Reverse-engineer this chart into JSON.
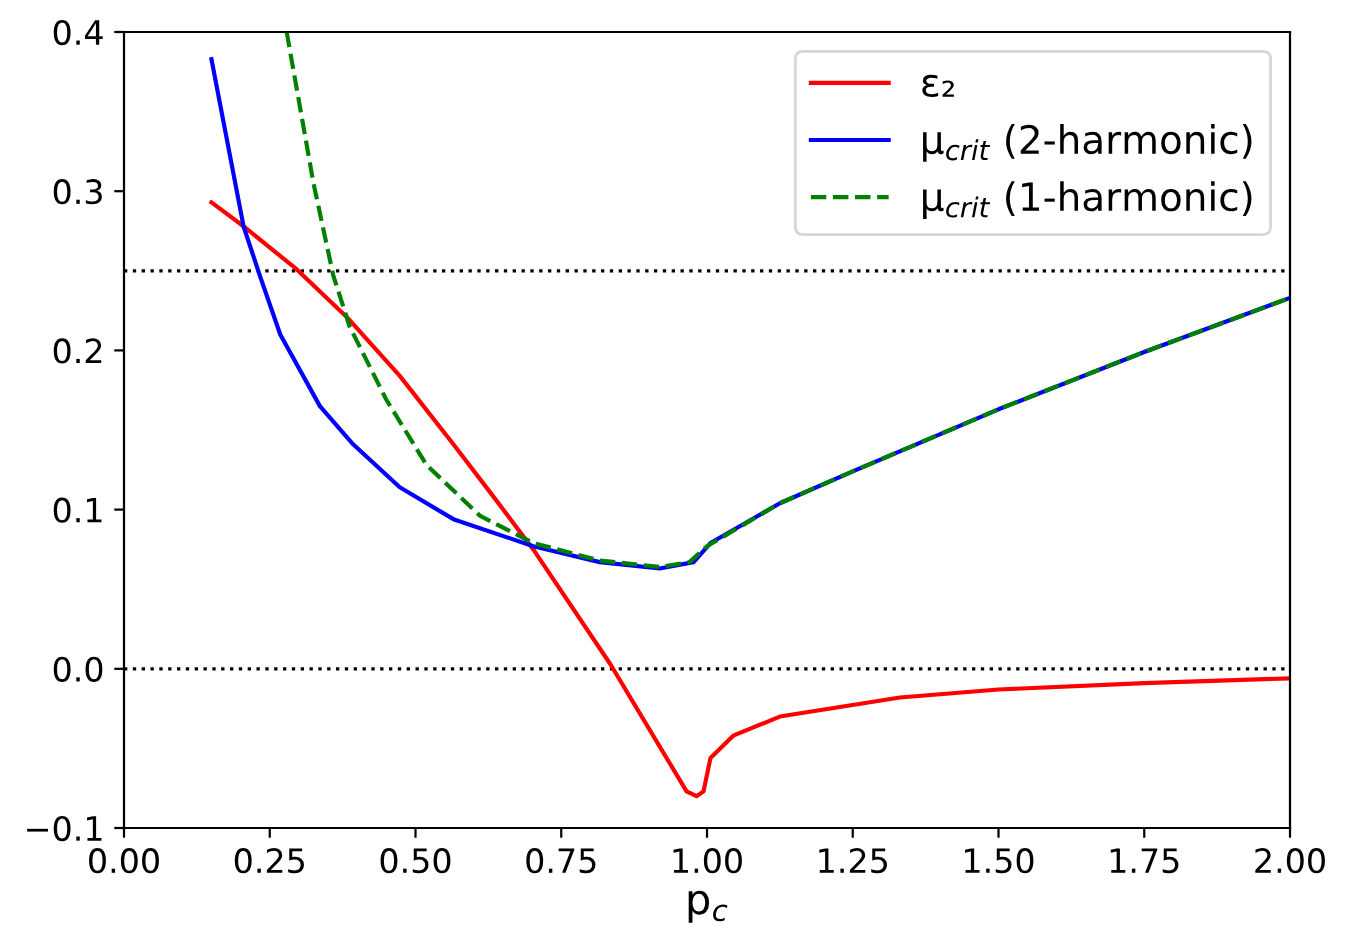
{
  "chart_data": {
    "type": "line",
    "xlabel": "p$_{c}$",
    "xlim": [
      0,
      2
    ],
    "ylim": [
      -0.1,
      0.4
    ],
    "xticks": [
      {
        "value": 0,
        "label": "0.00"
      },
      {
        "value": 0.25,
        "label": "0.25"
      },
      {
        "value": 0.5,
        "label": "0.50"
      },
      {
        "value": 0.75,
        "label": "0.75"
      },
      {
        "value": 1,
        "label": "1.00"
      },
      {
        "value": 1.25,
        "label": "1.25"
      },
      {
        "value": 1.5,
        "label": "1.50"
      },
      {
        "value": 1.75,
        "label": "1.75"
      },
      {
        "value": 2,
        "label": "2.00"
      }
    ],
    "yticks": [
      {
        "value": -0.1,
        "label": "−0.1"
      },
      {
        "value": 0,
        "label": "0.0"
      },
      {
        "value": 0.1,
        "label": "0.1"
      },
      {
        "value": 0.2,
        "label": "0.2"
      },
      {
        "value": 0.3,
        "label": "0.3"
      },
      {
        "value": 0.4,
        "label": "0.4"
      }
    ],
    "grid": false,
    "legend": "top right",
    "ref_lines": [
      {
        "axis": "y",
        "value": 0.25,
        "color": "#000000",
        "line_style": "dotted"
      },
      {
        "axis": "y",
        "value": 0,
        "color": "#000000",
        "line_style": "dotted"
      }
    ],
    "series": [
      {
        "name": "ε₂",
        "color": "#ff0000",
        "line_style": "solid",
        "x": [
          0.15,
          0.205,
          0.296,
          0.382,
          0.473,
          0.565,
          0.634,
          0.702,
          0.834,
          0.965,
          0.982,
          0.994,
          1.006,
          1.045,
          1.125,
          1.331,
          1.5,
          1.75,
          2.0
        ],
        "values": [
          0.293,
          0.278,
          0.251,
          0.221,
          0.184,
          0.141,
          0.108,
          0.075,
          0.003,
          -0.077,
          -0.08,
          -0.077,
          -0.056,
          -0.042,
          -0.03,
          -0.018,
          -0.013,
          -0.009,
          -0.006
        ]
      },
      {
        "name": "μ$_{crit}$ (2-harmonic)",
        "color": "#0000ff",
        "line_style": "solid",
        "x": [
          0.15,
          0.205,
          0.233,
          0.268,
          0.336,
          0.393,
          0.473,
          0.565,
          0.702,
          0.816,
          0.919,
          0.977,
          1.006,
          1.125,
          1.25,
          1.5,
          1.75,
          2.0
        ],
        "values": [
          0.383,
          0.278,
          0.247,
          0.21,
          0.165,
          0.141,
          0.114,
          0.094,
          0.077,
          0.067,
          0.063,
          0.067,
          0.079,
          0.104,
          0.124,
          0.163,
          0.199,
          0.233
        ]
      },
      {
        "name": "μ$_{crit}$ (1-harmonic)",
        "color": "#008000",
        "line_style": "dashed",
        "x": [
          0.279,
          0.325,
          0.359,
          0.387,
          0.45,
          0.519,
          0.611,
          0.702,
          0.816,
          0.919,
          0.97,
          1.0,
          1.125,
          1.25,
          1.5,
          1.75,
          2.0
        ],
        "values": [
          0.4,
          0.305,
          0.247,
          0.215,
          0.169,
          0.128,
          0.096,
          0.079,
          0.068,
          0.064,
          0.067,
          0.077,
          0.104,
          0.124,
          0.163,
          0.199,
          0.233
        ]
      }
    ]
  }
}
